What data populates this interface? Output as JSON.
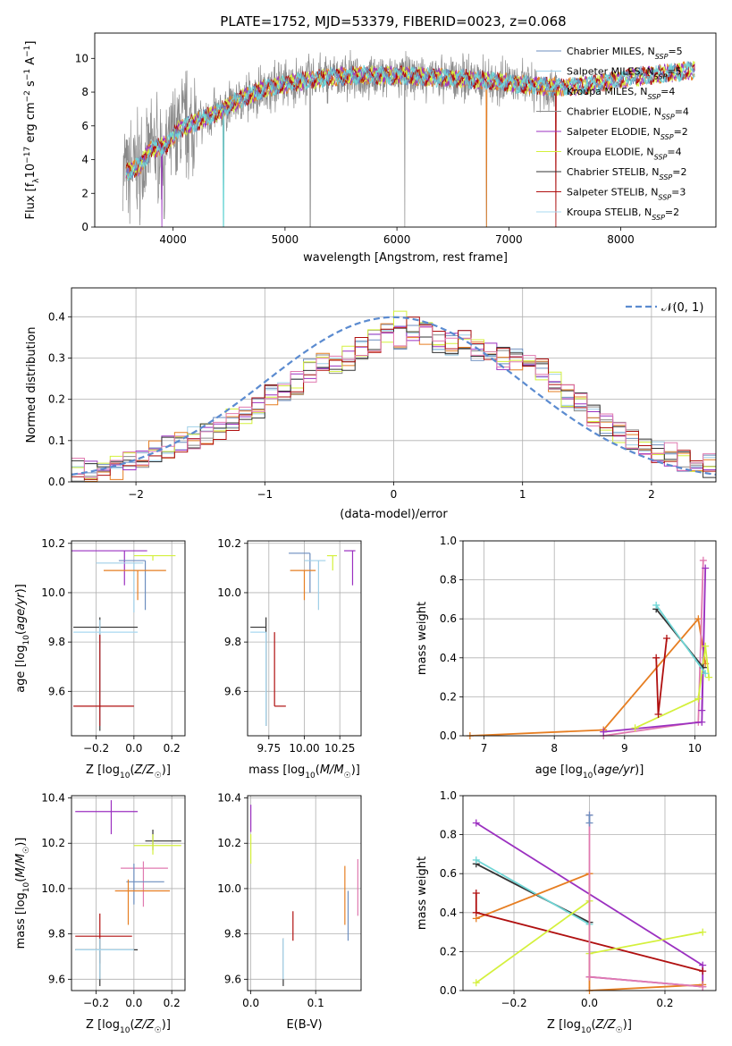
{
  "title": "PLATE=1752, MJD=53379, FIBERID=0023, z=0.068",
  "colors": {
    "chab_miles": "#6c8ebf",
    "salp_miles": "#9fcfe8",
    "krou_miles": "#e67e22",
    "chab_elodie": "#8a8a8a",
    "salp_elodie": "#9b30c0",
    "krou_elodie": "#d4f03c",
    "chab_stelib": "#333333",
    "salp_stelib": "#b01010",
    "krou_stelib": "#a8d8f0",
    "pink": "#e07ab0",
    "normal": "#5b8bd0",
    "cyan": "#6fd6d6",
    "grid": "#b0b0b0"
  },
  "chart_data": [
    {
      "id": "spectrum",
      "type": "line",
      "xlabel": "wavelength [Angstrom, rest frame]",
      "ylabel": "Flux [f_λ10^-17 erg cm^-2 s^-1 A^-1]",
      "xlim": [
        3300,
        8850
      ],
      "ylim": [
        0,
        11.5
      ],
      "xticks": [
        "4000",
        "5000",
        "6000",
        "7000",
        "8000"
      ],
      "yticks": [
        "0",
        "2",
        "4",
        "6",
        "8",
        "10"
      ],
      "legend_position": "right",
      "legend": [
        {
          "base": "Chabrier MILES, N",
          "sub": "SSP",
          "tail": "=5",
          "color_key": "chab_miles"
        },
        {
          "base": "Salpeter MILES, N",
          "sub": "SSP",
          "tail": "=5",
          "color_key": "salp_miles"
        },
        {
          "base": "Kroupa MILES, N",
          "sub": "SSP",
          "tail": "=4",
          "color_key": "krou_miles"
        },
        {
          "base": "Chabrier ELODIE, N",
          "sub": "SSP",
          "tail": "=4",
          "color_key": "chab_elodie"
        },
        {
          "base": "Salpeter ELODIE, N",
          "sub": "SSP",
          "tail": "=2",
          "color_key": "salp_elodie"
        },
        {
          "base": "Kroupa ELODIE, N",
          "sub": "SSP",
          "tail": "=4",
          "color_key": "krou_elodie"
        },
        {
          "base": "Chabrier STELIB, N",
          "sub": "SSP",
          "tail": "=2",
          "color_key": "chab_stelib"
        },
        {
          "base": "Salpeter STELIB, N",
          "sub": "SSP",
          "tail": "=3",
          "color_key": "salp_stelib"
        },
        {
          "base": "Kroupa STELIB, N",
          "sub": "SSP",
          "tail": "=2",
          "color_key": "krou_stelib"
        }
      ],
      "continuum": [
        [
          3550,
          3.2
        ],
        [
          3700,
          3.6
        ],
        [
          3800,
          4.6
        ],
        [
          3950,
          4.9
        ],
        [
          4050,
          5.8
        ],
        [
          4200,
          6.2
        ],
        [
          4400,
          6.8
        ],
        [
          4600,
          7.6
        ],
        [
          4850,
          8.3
        ],
        [
          5100,
          8.6
        ],
        [
          5400,
          8.9
        ],
        [
          5700,
          9.0
        ],
        [
          6000,
          9.0
        ],
        [
          6300,
          8.9
        ],
        [
          6600,
          8.8
        ],
        [
          6900,
          8.6
        ],
        [
          7200,
          8.4
        ],
        [
          7500,
          8.3
        ],
        [
          7800,
          8.5
        ],
        [
          8100,
          8.9
        ],
        [
          8400,
          9.1
        ],
        [
          8650,
          9.3
        ]
      ],
      "spikes_down": [
        [
          4450,
          0
        ],
        [
          5225,
          0
        ],
        [
          6800,
          0
        ],
        [
          7420,
          0
        ],
        [
          3920,
          0.5
        ],
        [
          4025,
          3.1
        ],
        [
          6070,
          0
        ]
      ],
      "data_range": [
        3550,
        7430
      ],
      "model_range": [
        3580,
        8660
      ]
    },
    {
      "id": "residuals",
      "type": "histogram",
      "xlabel": "(data-model)/error",
      "ylabel": "Normed distribution",
      "xlim": [
        -2.5,
        2.5
      ],
      "ylim": [
        0,
        0.47
      ],
      "xticks": [
        "−2",
        "−1",
        "0",
        "1",
        "2"
      ],
      "yticks": [
        "0.0",
        "0.1",
        "0.2",
        "0.3",
        "0.4"
      ],
      "legend": "𝒩(0, 1)",
      "legend_position": "upper right",
      "bin_width": 0.1,
      "bin_start": -2.5,
      "base": [
        0.03,
        0.025,
        0.03,
        0.035,
        0.05,
        0.055,
        0.07,
        0.085,
        0.1,
        0.11,
        0.115,
        0.13,
        0.15,
        0.16,
        0.175,
        0.21,
        0.22,
        0.24,
        0.27,
        0.29,
        0.29,
        0.3,
        0.32,
        0.34,
        0.36,
        0.35,
        0.37,
        0.36,
        0.34,
        0.33,
        0.34,
        0.32,
        0.31,
        0.3,
        0.3,
        0.28,
        0.27,
        0.24,
        0.21,
        0.19,
        0.16,
        0.14,
        0.12,
        0.1,
        0.085,
        0.075,
        0.065,
        0.055,
        0.05,
        0.04
      ]
    },
    {
      "id": "age_vs_Z",
      "type": "errorbar",
      "xlabel": "Z [log10(Z/Z☉)]",
      "ylabel": "age [log10(age/yr)]",
      "xlim": [
        -0.33,
        0.27
      ],
      "ylim": [
        9.42,
        10.21
      ],
      "xticks": [
        "−0.2",
        "0.0",
        "0.2"
      ],
      "yticks": [
        "9.6",
        "9.8",
        "10.0",
        "10.2"
      ],
      "points": [
        {
          "x": -0.05,
          "y": 10.17,
          "xerr": [
            0.28,
            0.12
          ],
          "yerr": [
            0.14,
            0.0
          ],
          "color_key": "salp_elodie"
        },
        {
          "x": 0.1,
          "y": 10.15,
          "xerr": [
            0.1,
            0.12
          ],
          "yerr": [
            0.02,
            0.0
          ],
          "color_key": "krou_elodie"
        },
        {
          "x": 0.06,
          "y": 10.13,
          "xerr": [
            0.14,
            0.0
          ],
          "yerr": [
            0.2,
            0.0
          ],
          "color_key": "chab_miles"
        },
        {
          "x": 0.0,
          "y": 10.12,
          "xerr": [
            0.2,
            0.05
          ],
          "yerr": [
            0.2,
            0.0
          ],
          "color_key": "salp_miles"
        },
        {
          "x": 0.02,
          "y": 10.09,
          "xerr": [
            0.18,
            0.15
          ],
          "yerr": [
            0.12,
            0.0
          ],
          "color_key": "krou_miles"
        },
        {
          "x": -0.18,
          "y": 9.86,
          "xerr": [
            0.14,
            0.2
          ],
          "yerr": [
            0.42,
            0.04
          ],
          "color_key": "chab_stelib"
        },
        {
          "x": -0.18,
          "y": 9.84,
          "xerr": [
            0.14,
            0.2
          ],
          "yerr": [
            0.38,
            0.05
          ],
          "color_key": "krou_stelib"
        },
        {
          "x": -0.18,
          "y": 9.54,
          "xerr": [
            0.14,
            0.18
          ],
          "yerr": [
            0.08,
            0.29
          ],
          "color_key": "salp_stelib"
        }
      ]
    },
    {
      "id": "age_vs_mass",
      "type": "errorbar",
      "xlabel": "mass [log10(M/M☉)]",
      "ylabel": "",
      "xlim": [
        9.6,
        10.4
      ],
      "ylim": [
        9.42,
        10.21
      ],
      "xticks": [
        "9.75",
        "10.00",
        "10.25"
      ],
      "yticks": [
        "9.6",
        "9.8",
        "10.0",
        "10.2"
      ],
      "points": [
        {
          "x": 10.34,
          "y": 10.17,
          "xerr": [
            0.06,
            0.02
          ],
          "yerr": [
            0.14,
            0.0
          ],
          "color_key": "salp_elodie"
        },
        {
          "x": 10.2,
          "y": 10.15,
          "xerr": [
            0.04,
            0.03
          ],
          "yerr": [
            0.06,
            0.0
          ],
          "color_key": "krou_elodie"
        },
        {
          "x": 10.04,
          "y": 10.16,
          "xerr": [
            0.15,
            0.0
          ],
          "yerr": [
            0.16,
            0.0
          ],
          "color_key": "chab_miles"
        },
        {
          "x": 10.1,
          "y": 10.13,
          "xerr": [
            0.1,
            0.05
          ],
          "yerr": [
            0.2,
            0.0
          ],
          "color_key": "salp_miles"
        },
        {
          "x": 10.0,
          "y": 10.09,
          "xerr": [
            0.1,
            0.08
          ],
          "yerr": [
            0.12,
            0.0
          ],
          "color_key": "krou_miles"
        },
        {
          "x": 9.73,
          "y": 9.86,
          "xerr": [
            0.11,
            0.0
          ],
          "yerr": [
            0.4,
            0.04
          ],
          "color_key": "chab_stelib"
        },
        {
          "x": 9.73,
          "y": 9.84,
          "xerr": [
            0.11,
            0.0
          ],
          "yerr": [
            0.38,
            0.0
          ],
          "color_key": "krou_stelib"
        },
        {
          "x": 9.79,
          "y": 9.54,
          "xerr": [
            0.0,
            0.08
          ],
          "yerr": [
            0.0,
            0.3
          ],
          "color_key": "salp_stelib"
        }
      ]
    },
    {
      "id": "weight_vs_age",
      "type": "line",
      "xlabel": "age [log10(age/yr)]",
      "ylabel": "mass weight",
      "xlim": [
        6.7,
        10.3
      ],
      "ylim": [
        0,
        1
      ],
      "xticks": [
        "7",
        "8",
        "9",
        "10"
      ],
      "yticks": [
        "0.0",
        "0.2",
        "0.4",
        "0.6",
        "0.8",
        "1.0"
      ],
      "series": [
        {
          "color_key": "krou_miles",
          "points": [
            [
              6.8,
              0.0
            ],
            [
              8.7,
              0.03
            ],
            [
              10.05,
              0.6
            ],
            [
              10.15,
              0.37
            ]
          ]
        },
        {
          "color_key": "pink",
          "points": [
            [
              8.7,
              0.0
            ],
            [
              10.05,
              0.07
            ],
            [
              10.12,
              0.9
            ]
          ]
        },
        {
          "color_key": "salp_elodie",
          "points": [
            [
              8.7,
              0.02
            ],
            [
              10.1,
              0.07
            ],
            [
              10.15,
              0.86
            ],
            [
              10.1,
              0.13
            ]
          ]
        },
        {
          "color_key": "krou_elodie",
          "points": [
            [
              9.15,
              0.04
            ],
            [
              10.05,
              0.19
            ],
            [
              10.15,
              0.46
            ],
            [
              10.2,
              0.3
            ]
          ]
        },
        {
          "color_key": "chab_stelib",
          "points": [
            [
              9.45,
              0.65
            ],
            [
              10.12,
              0.35
            ]
          ]
        },
        {
          "color_key": "cyan",
          "points": [
            [
              9.45,
              0.67
            ],
            [
              10.15,
              0.32
            ]
          ]
        },
        {
          "color_key": "salp_stelib",
          "points": [
            [
              9.45,
              0.4
            ],
            [
              9.48,
              0.11
            ],
            [
              9.6,
              0.5
            ]
          ]
        }
      ]
    },
    {
      "id": "mass_vs_Z",
      "type": "errorbar",
      "xlabel": "Z [log10(Z/Z☉)]",
      "ylabel": "mass [log10(M/M☉)]",
      "xlim": [
        -0.33,
        0.27
      ],
      "ylim": [
        9.55,
        10.41
      ],
      "xticks": [
        "−0.2",
        "0.0",
        "0.2"
      ],
      "yticks": [
        "9.6",
        "9.8",
        "10.0",
        "10.2",
        "10.4"
      ],
      "points": [
        {
          "x": -0.12,
          "y": 10.34,
          "xerr": [
            0.19,
            0.14
          ],
          "yerr": [
            0.1,
            0.05
          ],
          "color_key": "salp_elodie"
        },
        {
          "x": 0.1,
          "y": 10.21,
          "xerr": [
            0.04,
            0.15
          ],
          "yerr": [
            0.04,
            0.05
          ],
          "color_key": "chab_stelib"
        },
        {
          "x": 0.1,
          "y": 10.19,
          "xerr": [
            0.1,
            0.15
          ],
          "yerr": [
            0.04,
            0.05
          ],
          "color_key": "krou_elodie"
        },
        {
          "x": 0.05,
          "y": 10.09,
          "xerr": [
            0.12,
            0.13
          ],
          "yerr": [
            0.17,
            0.03
          ],
          "color_key": "pink"
        },
        {
          "x": 0.0,
          "y": 10.03,
          "xerr": [
            0.04,
            0.16
          ],
          "yerr": [
            0.1,
            0.08
          ],
          "color_key": "chab_miles"
        },
        {
          "x": -0.03,
          "y": 9.99,
          "xerr": [
            0.07,
            0.22
          ],
          "yerr": [
            0.15,
            0.05
          ],
          "color_key": "krou_miles"
        },
        {
          "x": -0.18,
          "y": 9.79,
          "xerr": [
            0.13,
            0.17
          ],
          "yerr": [
            0.12,
            0.1
          ],
          "color_key": "salp_stelib"
        },
        {
          "x": -0.18,
          "y": 9.73,
          "xerr": [
            0.13,
            0.2
          ],
          "yerr": [
            0.16,
            0.05
          ],
          "color_key": "chab_stelib"
        },
        {
          "x": -0.18,
          "y": 9.73,
          "xerr": [
            0.13,
            0.18
          ],
          "yerr": [
            0.13,
            0.05
          ],
          "color_key": "krou_stelib"
        }
      ]
    },
    {
      "id": "mass_vs_ebv",
      "type": "errorbar",
      "xlabel": "E(B-V)",
      "ylabel": "",
      "xlim": [
        -0.005,
        0.17
      ],
      "ylim": [
        9.55,
        10.41
      ],
      "xticks": [
        "0.0",
        "0.1"
      ],
      "yticks": [
        "9.6",
        "9.8",
        "10.0",
        "10.2",
        "10.4"
      ],
      "points": [
        {
          "x": 0.0,
          "y": 10.32,
          "yerr": [
            0.07,
            0.05
          ],
          "color_key": "salp_elodie"
        },
        {
          "x": 0.0,
          "y": 10.18,
          "yerr": [
            0.07,
            0.06
          ],
          "color_key": "krou_elodie"
        },
        {
          "x": 0.05,
          "y": 9.73,
          "yerr": [
            0.16,
            0.05
          ],
          "color_key": "chab_stelib"
        },
        {
          "x": 0.05,
          "y": 9.73,
          "yerr": [
            0.13,
            0.05
          ],
          "color_key": "krou_stelib"
        },
        {
          "x": 0.065,
          "y": 9.83,
          "yerr": [
            0.06,
            0.07
          ],
          "color_key": "salp_stelib"
        },
        {
          "x": 0.145,
          "y": 10.0,
          "yerr": [
            0.16,
            0.1
          ],
          "color_key": "krou_miles"
        },
        {
          "x": 0.15,
          "y": 9.87,
          "yerr": [
            0.1,
            0.12
          ],
          "color_key": "chab_miles"
        },
        {
          "x": 0.165,
          "y": 10.0,
          "yerr": [
            0.12,
            0.13
          ],
          "color_key": "pink"
        }
      ]
    },
    {
      "id": "weight_vs_Z",
      "type": "line",
      "xlabel": "Z [log10(Z/Z☉)]",
      "ylabel": "mass weight",
      "xlim": [
        -0.335,
        0.335
      ],
      "ylim": [
        0,
        1
      ],
      "xticks": [
        "−0.2",
        "0.0",
        "0.2"
      ],
      "yticks": [
        "0.0",
        "0.2",
        "0.4",
        "0.6",
        "0.8",
        "1.0"
      ],
      "series": [
        {
          "color_key": "salp_elodie",
          "points": [
            [
              -0.3,
              0.86
            ],
            [
              0.3,
              0.13
            ],
            [
              0.3,
              0.02
            ],
            [
              0.0,
              0.07
            ]
          ]
        },
        {
          "color_key": "chab_stelib",
          "points": [
            [
              -0.3,
              0.65
            ],
            [
              0.0,
              0.35
            ]
          ]
        },
        {
          "color_key": "cyan",
          "points": [
            [
              -0.3,
              0.67
            ],
            [
              0.0,
              0.34
            ]
          ]
        },
        {
          "color_key": "krou_miles",
          "points": [
            [
              -0.3,
              0.37
            ],
            [
              0.0,
              0.6
            ],
            [
              0.0,
              0.0
            ],
            [
              0.3,
              0.03
            ]
          ]
        },
        {
          "color_key": "salp_stelib",
          "points": [
            [
              -0.3,
              0.5
            ],
            [
              -0.3,
              0.4
            ],
            [
              0.3,
              0.1
            ]
          ]
        },
        {
          "color_key": "krou_elodie",
          "points": [
            [
              -0.3,
              0.04
            ],
            [
              0.0,
              0.46
            ],
            [
              0.0,
              0.19
            ],
            [
              0.3,
              0.3
            ]
          ]
        },
        {
          "color_key": "pink",
          "points": [
            [
              0.0,
              0.9
            ],
            [
              0.0,
              0.07
            ],
            [
              0.3,
              0.02
            ]
          ]
        },
        {
          "color_key": "chab_miles",
          "points": [
            [
              0.0,
              0.9
            ],
            [
              0.0,
              0.86
            ]
          ]
        }
      ]
    }
  ]
}
